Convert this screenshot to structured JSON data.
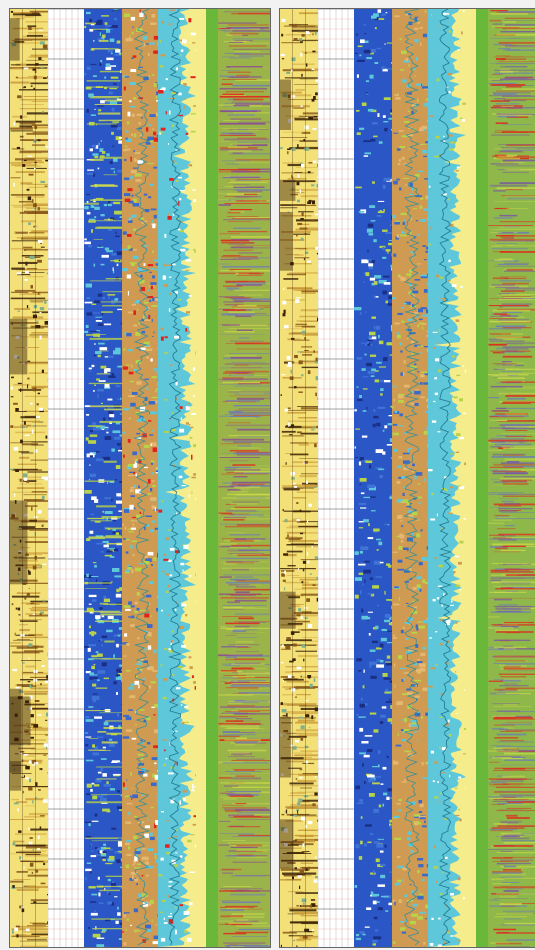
{
  "colors": {
    "page_background": "#f2f2f2",
    "panel_border": "#666666",
    "image_yellow": "#f3e077",
    "image_brown": "#8a5a1c",
    "image_dark": "#3a2208",
    "grid_line": "#8c8c8c",
    "grid_red": "#e28b8b",
    "blue": "#2a56c6",
    "navy": "#1b2f86",
    "cyan": "#5ec8da",
    "tan": "#cf9a52",
    "yellow_green": "#b8d24a",
    "red": "#e2231a",
    "pale_yellow": "#f5ec8c",
    "green": "#6ab83a",
    "purple": "#8a4a94",
    "olive_green": "#8fb84a"
  },
  "panels": [
    {
      "name": "left-log-panel",
      "tracks": [
        "borehole-image",
        "depth-grid",
        "blue-facies",
        "tan-facies",
        "cyan-curve",
        "pale-yellow-band",
        "green-band",
        "purple-spectrum"
      ]
    },
    {
      "name": "right-log-panel",
      "tracks": [
        "borehole-image",
        "depth-grid",
        "blue-facies",
        "tan-facies",
        "cyan-curve",
        "pale-yellow-band",
        "green-band",
        "green-spectrum"
      ]
    }
  ]
}
